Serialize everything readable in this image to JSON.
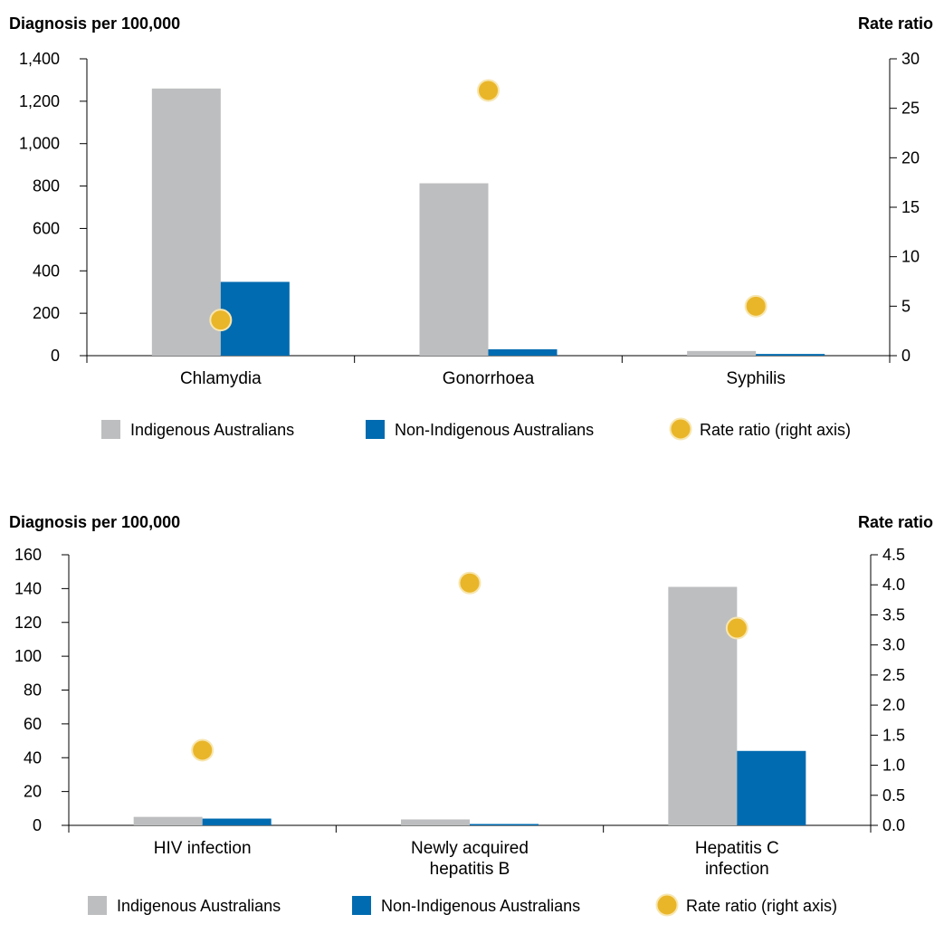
{
  "colors": {
    "indigenous": "#bdbec0",
    "non_indigenous": "#006bb0",
    "rate_ratio": "#e9b62a",
    "rate_ratio_stroke": "#f7e6b0"
  },
  "legend": {
    "indigenous": "Indigenous Australians",
    "non_indigenous": "Non-Indigenous Australians",
    "rate_ratio": "Rate ratio (right axis)"
  },
  "chart_data": [
    {
      "type": "bar",
      "ylabel": "Diagnosis per 100,000",
      "y2label": "Rate ratio",
      "categories": [
        [
          "Chlamydia"
        ],
        [
          "Gonorrhoea"
        ],
        [
          "Syphilis"
        ]
      ],
      "ylim": [
        0,
        1400
      ],
      "yticks": [
        0,
        200,
        400,
        600,
        800,
        1000,
        1200,
        1400
      ],
      "ytick_labels": [
        "0",
        "200",
        "400",
        "600",
        "800",
        "1,000",
        "1,200",
        "1,400"
      ],
      "y2lim": [
        0,
        30
      ],
      "y2ticks": [
        0,
        5,
        10,
        15,
        20,
        25,
        30
      ],
      "y2tick_labels": [
        "0",
        "5",
        "10",
        "15",
        "20",
        "25",
        "30"
      ],
      "series": [
        {
          "name": "Indigenous Australians",
          "values": [
            1260,
            813,
            22
          ]
        },
        {
          "name": "Non-Indigenous Australians",
          "values": [
            348,
            30,
            8
          ]
        },
        {
          "name": "Rate ratio (right axis)",
          "axis": "right",
          "values": [
            3.6,
            26.8,
            5.0
          ]
        }
      ],
      "legend_position": "bottom"
    },
    {
      "type": "bar",
      "ylabel": "Diagnosis per 100,000",
      "y2label": "Rate ratio",
      "categories": [
        [
          "HIV infection"
        ],
        [
          "Newly acquired",
          "hepatitis B"
        ],
        [
          "Hepatitis C",
          "infection"
        ]
      ],
      "ylim": [
        0,
        160
      ],
      "yticks": [
        0,
        20,
        40,
        60,
        80,
        100,
        120,
        140,
        160
      ],
      "ytick_labels": [
        "0",
        "20",
        "40",
        "60",
        "80",
        "100",
        "120",
        "140",
        "160"
      ],
      "y2lim": [
        0,
        4.5
      ],
      "y2ticks": [
        0,
        0.5,
        1,
        1.5,
        2,
        2.5,
        3,
        3.5,
        4,
        4.5
      ],
      "y2tick_labels": [
        "0.0",
        "0.5",
        "1.0",
        "1.5",
        "2.0",
        "2.5",
        "3.0",
        "3.5",
        "4.0",
        "4.5"
      ],
      "series": [
        {
          "name": "Indigenous Australians",
          "values": [
            5,
            3.5,
            141
          ]
        },
        {
          "name": "Non-Indigenous Australians",
          "values": [
            4,
            0.8,
            44
          ]
        },
        {
          "name": "Rate ratio (right axis)",
          "axis": "right",
          "values": [
            1.25,
            4.03,
            3.28
          ]
        }
      ],
      "legend_position": "bottom"
    }
  ]
}
